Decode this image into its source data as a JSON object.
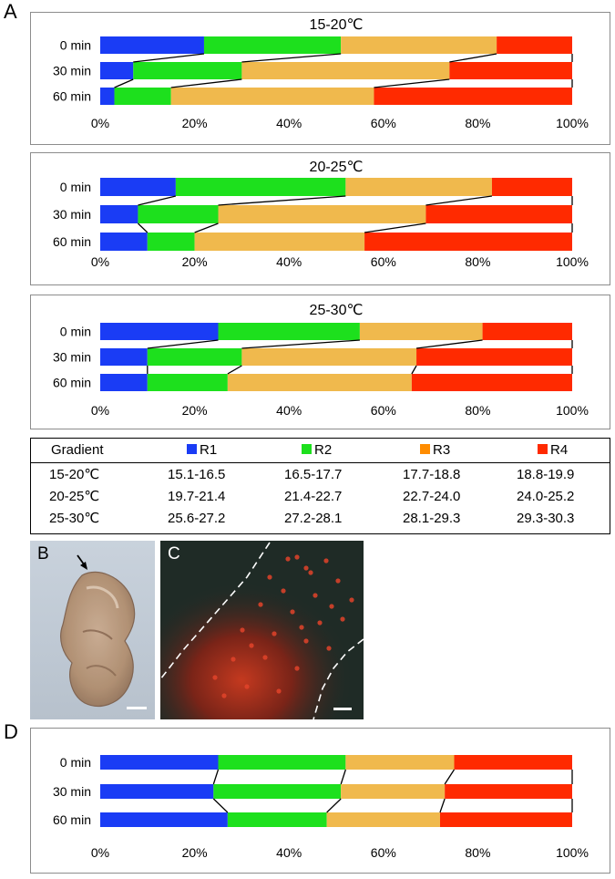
{
  "panels": {
    "A": "A",
    "B": "B",
    "C": "C",
    "D": "D"
  },
  "colors": {
    "R1": "#1a3cf5",
    "R2": "#1de01d",
    "R3": "#f0b94d",
    "R4": "#ff2a00",
    "R3_legend": "#ff8c00",
    "R4_legend": "#ff2a00"
  },
  "chart_data": [
    {
      "type": "bar",
      "orientation": "horizontal-stacked",
      "title": "15-20℃",
      "categories": [
        "0 min",
        "30 min",
        "60 min"
      ],
      "series": [
        {
          "name": "R1",
          "values": [
            22,
            7,
            3
          ]
        },
        {
          "name": "R2",
          "values": [
            29,
            23,
            12
          ]
        },
        {
          "name": "R3",
          "values": [
            33,
            44,
            43
          ]
        },
        {
          "name": "R4",
          "values": [
            16,
            26,
            42
          ]
        }
      ],
      "xticks": [
        "0%",
        "20%",
        "40%",
        "60%",
        "80%",
        "100%"
      ],
      "xlim": [
        0,
        100
      ]
    },
    {
      "type": "bar",
      "orientation": "horizontal-stacked",
      "title": "20-25℃",
      "categories": [
        "0 min",
        "30 min",
        "60 min"
      ],
      "series": [
        {
          "name": "R1",
          "values": [
            16,
            8,
            10
          ]
        },
        {
          "name": "R2",
          "values": [
            36,
            17,
            10
          ]
        },
        {
          "name": "R3",
          "values": [
            31,
            44,
            36
          ]
        },
        {
          "name": "R4",
          "values": [
            17,
            31,
            44
          ]
        }
      ],
      "xticks": [
        "0%",
        "20%",
        "40%",
        "60%",
        "80%",
        "100%"
      ],
      "xlim": [
        0,
        100
      ]
    },
    {
      "type": "bar",
      "orientation": "horizontal-stacked",
      "title": "25-30℃",
      "categories": [
        "0 min",
        "30 min",
        "60 min"
      ],
      "series": [
        {
          "name": "R1",
          "values": [
            25,
            10,
            10
          ]
        },
        {
          "name": "R2",
          "values": [
            30,
            20,
            17
          ]
        },
        {
          "name": "R3",
          "values": [
            26,
            37,
            39
          ]
        },
        {
          "name": "R4",
          "values": [
            19,
            33,
            34
          ]
        }
      ],
      "xticks": [
        "0%",
        "20%",
        "40%",
        "60%",
        "80%",
        "100%"
      ],
      "xlim": [
        0,
        100
      ]
    },
    {
      "type": "bar",
      "orientation": "horizontal-stacked",
      "title": "",
      "categories": [
        "0 min",
        "30 min",
        "60 min"
      ],
      "series": [
        {
          "name": "R1",
          "values": [
            25,
            24,
            27
          ]
        },
        {
          "name": "R2",
          "values": [
            27,
            27,
            21
          ]
        },
        {
          "name": "R3",
          "values": [
            23,
            22,
            24
          ]
        },
        {
          "name": "R4",
          "values": [
            25,
            27,
            28
          ]
        }
      ],
      "xticks": [
        "0%",
        "20%",
        "40%",
        "60%",
        "80%",
        "100%"
      ],
      "xlim": [
        0,
        100
      ]
    }
  ],
  "legend_table": {
    "header": [
      "Gradient",
      "R1",
      "R2",
      "R3",
      "R4"
    ],
    "rows": [
      [
        "15-20℃",
        "15.1-16.5",
        "16.5-17.7",
        "17.7-18.8",
        "18.8-19.9"
      ],
      [
        "20-25℃",
        "19.7-21.4",
        "21.4-22.7",
        "22.7-24.0",
        "24.0-25.2"
      ],
      [
        "25-30℃",
        "25.6-27.2",
        "27.2-28.1",
        "28.1-29.3",
        "29.3-30.3"
      ]
    ]
  }
}
